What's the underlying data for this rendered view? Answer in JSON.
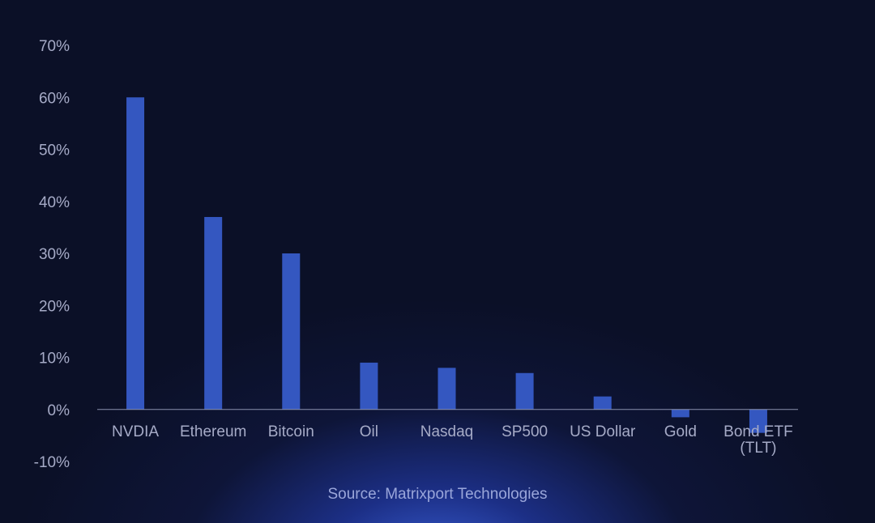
{
  "chart_data": {
    "type": "bar",
    "categories": [
      "NVDIA",
      "Ethereum",
      "Bitcoin",
      "Oil",
      "Nasdaq",
      "SP500",
      "US Dollar",
      "Gold",
      "Bond ETF\n(TLT)"
    ],
    "values": [
      60,
      37,
      30,
      9,
      8,
      7,
      2.5,
      -1.5,
      -4.5
    ],
    "title": "",
    "xlabel": "",
    "ylabel": "",
    "ylim": [
      -10,
      70
    ],
    "yticks": [
      70,
      60,
      50,
      40,
      30,
      20,
      10,
      0,
      -10
    ],
    "ytick_labels": [
      "70%",
      "60%",
      "50%",
      "40%",
      "30%",
      "20%",
      "10%",
      "0%",
      "-10%"
    ],
    "grid": false,
    "bar_color": "#3457c0",
    "axis_color": "#8a90ad"
  },
  "source": "Source: Matrixport Technologies"
}
